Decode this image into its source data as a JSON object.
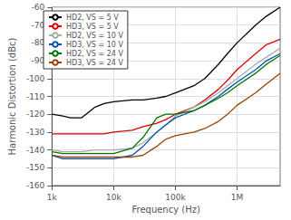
{
  "chart_data": {
    "type": "line",
    "xlabel": "Frequency (Hz)",
    "ylabel": "Harmonic Distortion (dBc)",
    "log": "x",
    "xlim": [
      1000,
      5000000
    ],
    "xticks": [
      {
        "value": 1000,
        "label": "1k"
      },
      {
        "value": 10000,
        "label": "10k"
      },
      {
        "value": 100000,
        "label": "100k"
      },
      {
        "value": 1000000,
        "label": "1M"
      }
    ],
    "ylim": [
      -160,
      -60
    ],
    "yticks": [
      -160,
      -150,
      -140,
      -130,
      -120,
      -110,
      -100,
      -90,
      -80,
      -70,
      -60
    ],
    "grid": true,
    "legend": "upper left",
    "x": [
      1000,
      1500,
      2000,
      3000,
      5000,
      7000,
      10000,
      20000,
      30000,
      50000,
      70000,
      100000,
      200000,
      300000,
      500000,
      700000,
      1000000,
      2000000,
      3000000,
      5000000
    ],
    "series": [
      {
        "name": "HD2, VS = 5 V",
        "color": "#000000",
        "values": [
          -120,
          -121,
          -122,
          -122,
          -116,
          -114,
          -113,
          -112,
          -112,
          -111,
          -110,
          -108,
          -104,
          -100,
          -92,
          -86,
          -80,
          -70,
          -65,
          -60
        ]
      },
      {
        "name": "HD3, VS = 5 V",
        "color": "#dd0000",
        "values": [
          -131,
          -131,
          -131,
          -131,
          -131,
          -131,
          -130,
          -129,
          -127,
          -125,
          -123,
          -120,
          -116,
          -112,
          -106,
          -101,
          -95,
          -86,
          -81,
          -78
        ]
      },
      {
        "name": "HD2, VS = 10 V",
        "color": "#aaaaaa",
        "values": [
          -140,
          -141,
          -141,
          -141,
          -140,
          -140,
          -140,
          -139,
          -136,
          -130,
          -126,
          -121,
          -116,
          -113,
          -108,
          -104,
          -100,
          -92,
          -88,
          -83
        ]
      },
      {
        "name": "HD3, VS = 10 V",
        "color": "#0055aa",
        "values": [
          -143,
          -145,
          -145,
          -145,
          -145,
          -145,
          -145,
          -143,
          -138,
          -130,
          -126,
          -122,
          -118,
          -115,
          -110,
          -106,
          -102,
          -95,
          -90,
          -86
        ]
      },
      {
        "name": "HD2, VS = 24 V",
        "color": "#007700",
        "values": [
          -141,
          -142,
          -142,
          -142,
          -142,
          -142,
          -142,
          -139,
          -133,
          -122,
          -120,
          -120,
          -118,
          -115,
          -111,
          -108,
          -104,
          -97,
          -92,
          -87
        ]
      },
      {
        "name": "HD3, VS = 24 V",
        "color": "#994400",
        "values": [
          -143,
          -144,
          -144,
          -144,
          -144,
          -144,
          -144,
          -144,
          -143,
          -138,
          -134,
          -132,
          -130,
          -128,
          -124,
          -120,
          -115,
          -108,
          -103,
          -97
        ]
      }
    ]
  }
}
